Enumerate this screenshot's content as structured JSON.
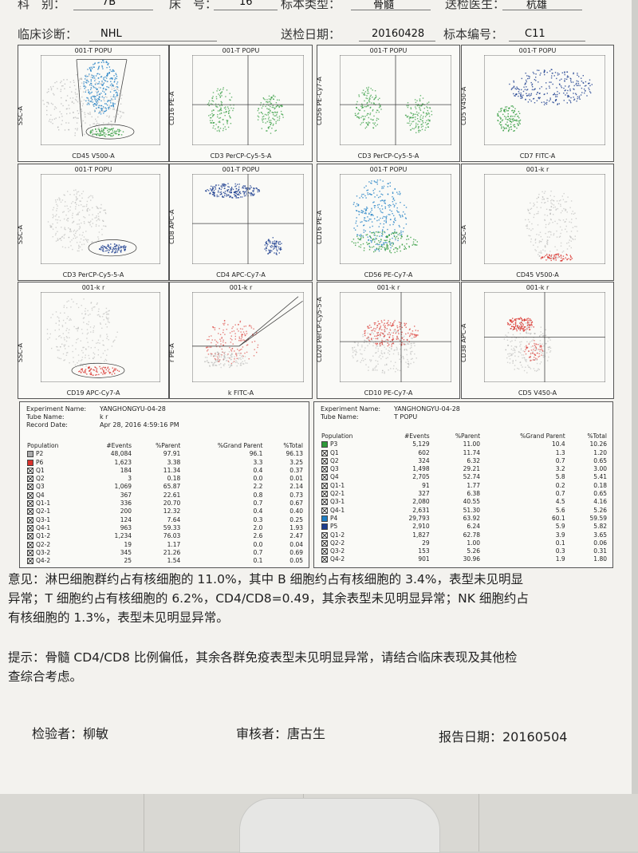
{
  "header": {
    "row1": {
      "category_label": "科　别：",
      "category_value": "7B",
      "bed_label": "床　号：",
      "bed_value": "16",
      "sample_type_label": "标本类型：",
      "sample_type_value": "骨髓",
      "doctor_label": "送检医生：",
      "doctor_value": "杭雄"
    },
    "row2": {
      "diagnosis_label": "临床诊断：",
      "diagnosis_value": "NHL",
      "date_label": "送检日期：",
      "date_value": "20160428",
      "sample_no_label": "标本编号：",
      "sample_no_value": "C11"
    }
  },
  "plots": [
    {
      "title": "001-T POPU",
      "xlabel": "CD45 V500-A",
      "ylabel": "SSC-A"
    },
    {
      "title": "001-T POPU",
      "xlabel": "CD3 PerCP-Cy5-5-A",
      "ylabel": "CD16 PE-A"
    },
    {
      "title": "001-T POPU",
      "xlabel": "CD3 PerCP-Cy5-5-A",
      "ylabel": "CD56 PE-Cy7-A"
    },
    {
      "title": "001-T POPU",
      "xlabel": "CD7 FITC-A",
      "ylabel": "CD5 V450-A"
    },
    {
      "title": "001-T POPU",
      "xlabel": "CD3 PerCP-Cy5-5-A",
      "ylabel": "SSC-A"
    },
    {
      "title": "001-T POPU",
      "xlabel": "CD4 APC-Cy7-A",
      "ylabel": "CD8 APC-A"
    },
    {
      "title": "001-T POPU",
      "xlabel": "CD56 PE-Cy7-A",
      "ylabel": "CD16 PE-A"
    },
    {
      "title": "001-k r",
      "xlabel": "CD45 V500-A",
      "ylabel": "SSC-A"
    },
    {
      "title": "001-k r",
      "xlabel": "CD19 APC-Cy7-A",
      "ylabel": "SSC-A"
    },
    {
      "title": "001-k r",
      "xlabel": "k FITC-A",
      "ylabel": "r PE-A"
    },
    {
      "title": "001-k r",
      "xlabel": "CD10 PE-Cy7-A",
      "ylabel": "CD20 PerCP-Cy5-5-A"
    },
    {
      "title": "001-k r",
      "xlabel": "CD5 V450-A",
      "ylabel": "CD38 APC-A"
    }
  ],
  "stats_left": {
    "experiment_label": "Experiment Name:",
    "experiment_value": "YANGHONGYU-04-28",
    "tube_label": "Tube Name:",
    "tube_value": "k r",
    "record_label": "Record Date:",
    "record_value": "Apr 28, 2016 4:59:16 PM",
    "columns": [
      "Population",
      "#Events",
      "%Parent",
      "%Grand Parent",
      "%Total"
    ],
    "rows": [
      [
        "P2",
        "48,084",
        "97.91",
        "96.1",
        "96.13",
        "#aaaaaa"
      ],
      [
        "P6",
        "1,623",
        "3.38",
        "3.3",
        "3.25",
        "#d9312b"
      ],
      [
        "Q1",
        "184",
        "11.34",
        "0.4",
        "0.37",
        "x"
      ],
      [
        "Q2",
        "3",
        "0.18",
        "0.0",
        "0.01",
        "x"
      ],
      [
        "Q3",
        "1,069",
        "65.87",
        "2.2",
        "2.14",
        "x"
      ],
      [
        "Q4",
        "367",
        "22.61",
        "0.8",
        "0.73",
        "x"
      ],
      [
        "Q1-1",
        "336",
        "20.70",
        "0.7",
        "0.67",
        "x"
      ],
      [
        "Q2-1",
        "200",
        "12.32",
        "0.4",
        "0.40",
        "x"
      ],
      [
        "Q3-1",
        "124",
        "7.64",
        "0.3",
        "0.25",
        "x"
      ],
      [
        "Q4-1",
        "963",
        "59.33",
        "2.0",
        "1.93",
        "x"
      ],
      [
        "Q1-2",
        "1,234",
        "76.03",
        "2.6",
        "2.47",
        "x"
      ],
      [
        "Q2-2",
        "19",
        "1.17",
        "0.0",
        "0.04",
        "x"
      ],
      [
        "Q3-2",
        "345",
        "21.26",
        "0.7",
        "0.69",
        "x"
      ],
      [
        "Q4-2",
        "25",
        "1.54",
        "0.1",
        "0.05",
        "x"
      ]
    ]
  },
  "stats_right": {
    "experiment_label": "Experiment Name:",
    "experiment_value": "YANGHONGYU-04-28",
    "tube_label": "Tube Name:",
    "tube_value": "T POPU",
    "columns": [
      "Population",
      "#Events",
      "%Parent",
      "%Grand Parent",
      "%Total"
    ],
    "rows": [
      [
        "P3",
        "5,129",
        "11.00",
        "10.4",
        "10.26",
        "#2e9a3a"
      ],
      [
        "Q1",
        "602",
        "11.74",
        "1.3",
        "1.20",
        "x"
      ],
      [
        "Q2",
        "324",
        "6.32",
        "0.7",
        "0.65",
        "x"
      ],
      [
        "Q3",
        "1,498",
        "29.21",
        "3.2",
        "3.00",
        "x"
      ],
      [
        "Q4",
        "2,705",
        "52.74",
        "5.8",
        "5.41",
        "x"
      ],
      [
        "Q1-1",
        "91",
        "1.77",
        "0.2",
        "0.18",
        "x"
      ],
      [
        "Q2-1",
        "327",
        "6.38",
        "0.7",
        "0.65",
        "x"
      ],
      [
        "Q3-1",
        "2,080",
        "40.55",
        "4.5",
        "4.16",
        "x"
      ],
      [
        "Q4-1",
        "2,631",
        "51.30",
        "5.6",
        "5.26",
        "x"
      ],
      [
        "P4",
        "29,793",
        "63.92",
        "60.1",
        "59.59",
        "#1f7fc4"
      ],
      [
        "P5",
        "2,910",
        "6.24",
        "5.9",
        "5.82",
        "#1c3d8f"
      ],
      [
        "Q1-2",
        "1,827",
        "62.78",
        "3.9",
        "3.65",
        "x"
      ],
      [
        "Q2-2",
        "29",
        "1.00",
        "0.1",
        "0.06",
        "x"
      ],
      [
        "Q3-2",
        "153",
        "5.26",
        "0.3",
        "0.31",
        "x"
      ],
      [
        "Q4-2",
        "901",
        "30.96",
        "1.9",
        "1.80",
        "x"
      ]
    ]
  },
  "opinion": {
    "line1": "意见：淋巴细胞群约占有核细胞的 11.0%，其中 B 细胞约占有核细胞的 3.4%，表型未见明显",
    "line2": "异常；T 细胞约占有核细胞的 6.2%，CD4/CD8=0.49，其余表型未见明显异常；NK 细胞约占",
    "line3": "有核细胞的 1.3%，表型未见明显异常。"
  },
  "hint": {
    "line1": "提示：骨髓 CD4/CD8 比例偏低，其余各群免疫表型未见明显异常，请结合临床表现及其他检",
    "line2": "查综合考虑。"
  },
  "signatures": {
    "inspector": "检验者：柳敏",
    "reviewer": "审核者：唐古生",
    "report_date": "报告日期：20160504"
  },
  "colors": {
    "red": "#d9312b",
    "green": "#2e9a3a",
    "blue": "#1f7fc4",
    "navy": "#1c3d8f",
    "gray": "#aaaaaa"
  }
}
